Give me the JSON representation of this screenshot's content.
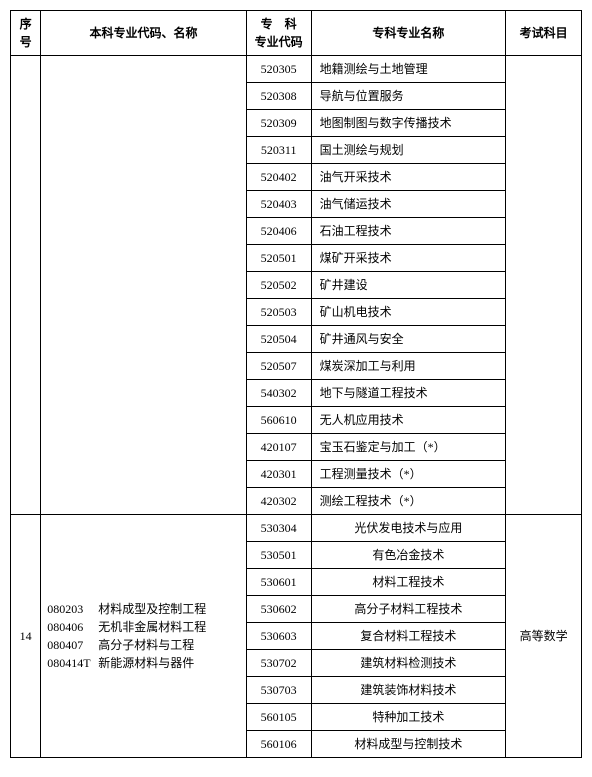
{
  "headers": {
    "seq": "序号",
    "major": "本科专业代码、名称",
    "code_l1": "专　科",
    "code_l2": "专业代码",
    "name": "专科专业名称",
    "exam": "考试科目"
  },
  "sections": [
    {
      "seq": "",
      "major_html": "",
      "exam": "",
      "rows": [
        {
          "code": "520305",
          "name": "地籍测绘与土地管理",
          "align": "left"
        },
        {
          "code": "520308",
          "name": "导航与位置服务",
          "align": "left"
        },
        {
          "code": "520309",
          "name": "地图制图与数字传播技术",
          "align": "left"
        },
        {
          "code": "520311",
          "name": "国土测绘与规划",
          "align": "left"
        },
        {
          "code": "520402",
          "name": "油气开采技术",
          "align": "left"
        },
        {
          "code": "520403",
          "name": "油气储运技术",
          "align": "left"
        },
        {
          "code": "520406",
          "name": "石油工程技术",
          "align": "left"
        },
        {
          "code": "520501",
          "name": "煤矿开采技术",
          "align": "left"
        },
        {
          "code": "520502",
          "name": "矿井建设",
          "align": "left"
        },
        {
          "code": "520503",
          "name": "矿山机电技术",
          "align": "left"
        },
        {
          "code": "520504",
          "name": "矿井通风与安全",
          "align": "left"
        },
        {
          "code": "520507",
          "name": "煤炭深加工与利用",
          "align": "left"
        },
        {
          "code": "540302",
          "name": "地下与隧道工程技术",
          "align": "left"
        },
        {
          "code": "560610",
          "name": "无人机应用技术",
          "align": "left"
        },
        {
          "code": "420107",
          "name": "宝玉石鉴定与加工（*）",
          "align": "left"
        },
        {
          "code": "420301",
          "name": "工程测量技术（*）",
          "align": "left"
        },
        {
          "code": "420302",
          "name": "测绘工程技术（*）",
          "align": "left"
        }
      ]
    },
    {
      "seq": "14",
      "major_lines": [
        {
          "code": "080203",
          "name": "材料成型及控制工程"
        },
        {
          "code": "080406",
          "name": "无机非金属材料工程"
        },
        {
          "code": "080407",
          "name": "高分子材料与工程"
        },
        {
          "code": "080414T",
          "name": "新能源材料与器件"
        }
      ],
      "exam": "高等数学",
      "rows": [
        {
          "code": "530304",
          "name": "光伏发电技术与应用",
          "align": "center"
        },
        {
          "code": "530501",
          "name": "有色冶金技术",
          "align": "center"
        },
        {
          "code": "530601",
          "name": "材料工程技术",
          "align": "center"
        },
        {
          "code": "530602",
          "name": "高分子材料工程技术",
          "align": "center"
        },
        {
          "code": "530603",
          "name": "复合材料工程技术",
          "align": "center"
        },
        {
          "code": "530702",
          "name": "建筑材料检测技术",
          "align": "center"
        },
        {
          "code": "530703",
          "name": "建筑装饰材料技术",
          "align": "center"
        },
        {
          "code": "560105",
          "name": "特种加工技术",
          "align": "center"
        },
        {
          "code": "560106",
          "name": "材料成型与控制技术",
          "align": "center"
        }
      ]
    }
  ]
}
